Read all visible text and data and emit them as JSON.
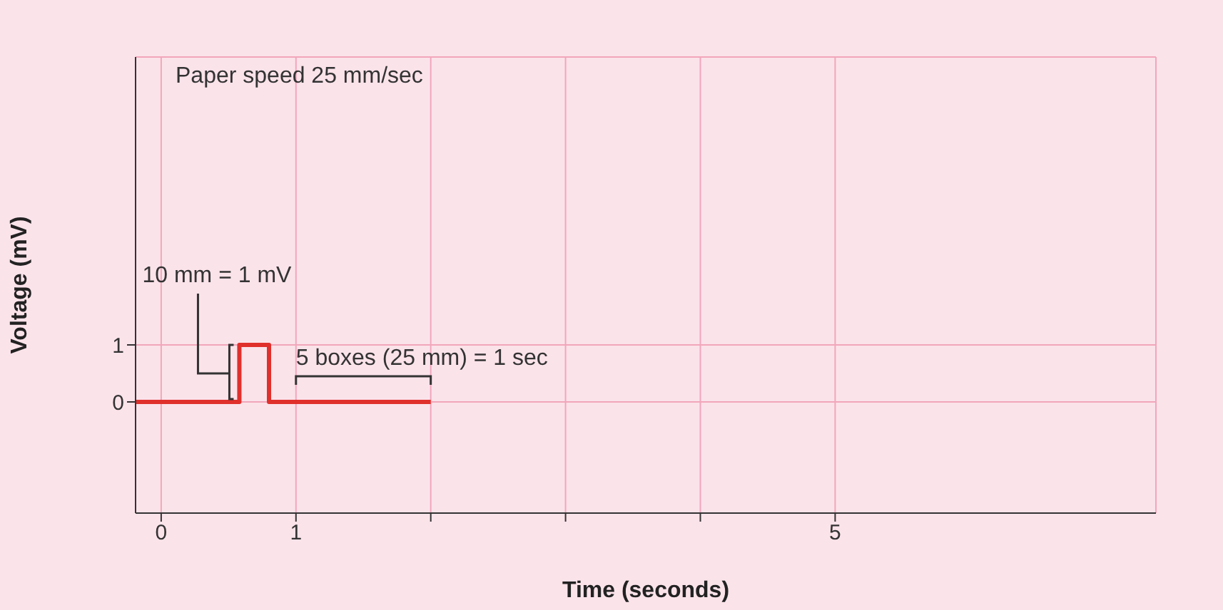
{
  "chart_data": {
    "type": "line",
    "xlabel": "Time (seconds)",
    "ylabel": "Voltage (mV)",
    "x": [
      -0.19,
      0.58,
      0.58,
      0.8,
      0.8,
      2.0
    ],
    "series": [
      {
        "color": "#e0302c",
        "values": [
          0,
          0,
          1,
          1,
          0,
          0
        ]
      }
    ],
    "xlim": [
      -0.19,
      7.38
    ],
    "xticks": [
      0,
      1,
      {
        "value": 2,
        "label": null
      },
      {
        "value": 3,
        "label": null
      },
      {
        "value": 4,
        "label": null
      },
      5
    ],
    "ylim": [
      -1.95,
      6.05
    ],
    "yticks": [
      0,
      1
    ],
    "grid": true,
    "marker": "none",
    "line_style": "solid",
    "annotations": [
      "Paper speed 25 mm/sec",
      {
        "text": "10 mm = 1 mV",
        "x": 0.58,
        "y": 1
      },
      "5 boxes (25 mm) = 1 sec"
    ]
  }
}
